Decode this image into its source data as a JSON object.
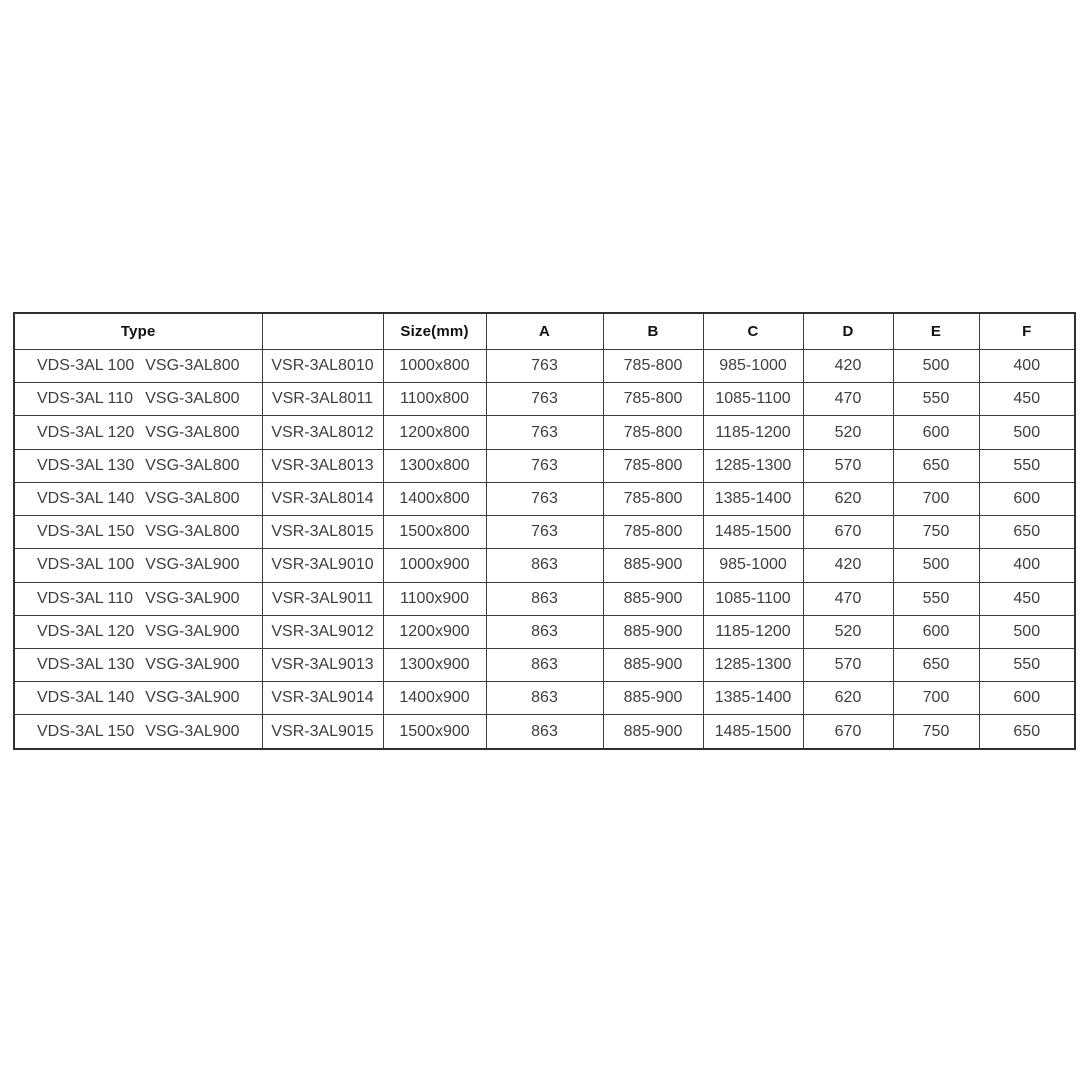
{
  "table": {
    "headers": [
      "Type",
      "",
      "Size(mm)",
      "A",
      "B",
      "C",
      "D",
      "E",
      "F"
    ],
    "value_column_keys": [
      "model",
      "size",
      "a",
      "b",
      "c",
      "d",
      "e",
      "f"
    ],
    "rows": [
      {
        "type": [
          "VDS-3AL 100",
          "VSG-3AL800"
        ],
        "values": [
          "VSR-3AL8010",
          "1000x800",
          "763",
          "785-800",
          "985-1000",
          "420",
          "500",
          "400"
        ]
      },
      {
        "type": [
          "VDS-3AL 110",
          "VSG-3AL800"
        ],
        "values": [
          "VSR-3AL8011",
          "1100x800",
          "763",
          "785-800",
          "1085-1100",
          "470",
          "550",
          "450"
        ]
      },
      {
        "type": [
          "VDS-3AL 120",
          "VSG-3AL800"
        ],
        "values": [
          "VSR-3AL8012",
          "1200x800",
          "763",
          "785-800",
          "1185-1200",
          "520",
          "600",
          "500"
        ]
      },
      {
        "type": [
          "VDS-3AL 130",
          "VSG-3AL800"
        ],
        "values": [
          "VSR-3AL8013",
          "1300x800",
          "763",
          "785-800",
          "1285-1300",
          "570",
          "650",
          "550"
        ]
      },
      {
        "type": [
          "VDS-3AL 140",
          "VSG-3AL800"
        ],
        "values": [
          "VSR-3AL8014",
          "1400x800",
          "763",
          "785-800",
          "1385-1400",
          "620",
          "700",
          "600"
        ]
      },
      {
        "type": [
          "VDS-3AL 150",
          "VSG-3AL800"
        ],
        "values": [
          "VSR-3AL8015",
          "1500x800",
          "763",
          "785-800",
          "1485-1500",
          "670",
          "750",
          "650"
        ]
      },
      {
        "type": [
          "VDS-3AL 100",
          "VSG-3AL900"
        ],
        "values": [
          "VSR-3AL9010",
          "1000x900",
          "863",
          "885-900",
          "985-1000",
          "420",
          "500",
          "400"
        ]
      },
      {
        "type": [
          "VDS-3AL 110",
          "VSG-3AL900"
        ],
        "values": [
          "VSR-3AL9011",
          "1100x900",
          "863",
          "885-900",
          "1085-1100",
          "470",
          "550",
          "450"
        ]
      },
      {
        "type": [
          "VDS-3AL 120",
          "VSG-3AL900"
        ],
        "values": [
          "VSR-3AL9012",
          "1200x900",
          "863",
          "885-900",
          "1185-1200",
          "520",
          "600",
          "500"
        ]
      },
      {
        "type": [
          "VDS-3AL 130",
          "VSG-3AL900"
        ],
        "values": [
          "VSR-3AL9013",
          "1300x900",
          "863",
          "885-900",
          "1285-1300",
          "570",
          "650",
          "550"
        ]
      },
      {
        "type": [
          "VDS-3AL 140",
          "VSG-3AL900"
        ],
        "values": [
          "VSR-3AL9014",
          "1400x900",
          "863",
          "885-900",
          "1385-1400",
          "620",
          "700",
          "600"
        ]
      },
      {
        "type": [
          "VDS-3AL 150",
          "VSG-3AL900"
        ],
        "values": [
          "VSR-3AL9015",
          "1500x900",
          "863",
          "885-900",
          "1485-1500",
          "670",
          "750",
          "650"
        ]
      }
    ],
    "colors": {
      "border": "#3d3d3d",
      "outer_border": "#303030",
      "header_text": "#121212",
      "bold_text": "#171717",
      "data_text": "#3e3e3e",
      "background": "#ffffff"
    }
  }
}
